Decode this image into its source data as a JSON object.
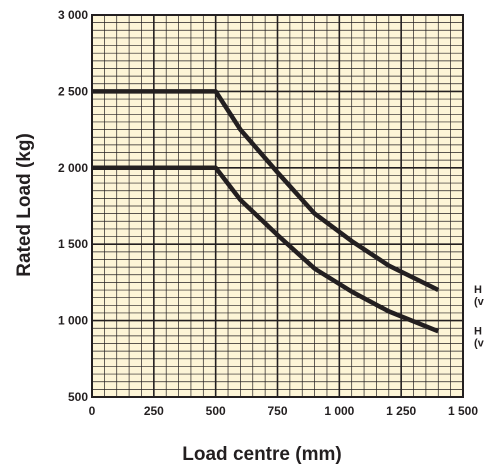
{
  "chart_data": {
    "type": "line",
    "xlabel": "Load centre (mm)",
    "ylabel": "Rated Load (kg)",
    "xlim": [
      0,
      1500
    ],
    "ylim": [
      500,
      3000
    ],
    "xticks": [
      0,
      250,
      500,
      750,
      1000,
      1250,
      1500
    ],
    "xtick_labels": [
      "0",
      "250",
      "500",
      "750",
      "1 000",
      "1 250",
      "1 500"
    ],
    "yticks": [
      500,
      1000,
      1500,
      2000,
      2500,
      3000
    ],
    "ytick_labels": [
      "500",
      "1 000",
      "1 500",
      "2 000",
      "2 500",
      "3 000"
    ],
    "grid": true,
    "colors": {
      "background": "#fdf5d7",
      "grid": "#231f20",
      "line": "#231f20"
    },
    "series": [
      {
        "label_lines": [
          "H",
          "(v"
        ],
        "x": [
          0,
          500,
          600,
          750,
          900,
          1050,
          1200,
          1400
        ],
        "y": [
          2500,
          2500,
          2250,
          1970,
          1700,
          1520,
          1360,
          1200
        ]
      },
      {
        "label_lines": [
          "H",
          "(v"
        ],
        "x": [
          0,
          500,
          600,
          750,
          900,
          1050,
          1200,
          1400
        ],
        "y": [
          2000,
          2000,
          1790,
          1560,
          1340,
          1190,
          1060,
          930
        ]
      }
    ]
  }
}
